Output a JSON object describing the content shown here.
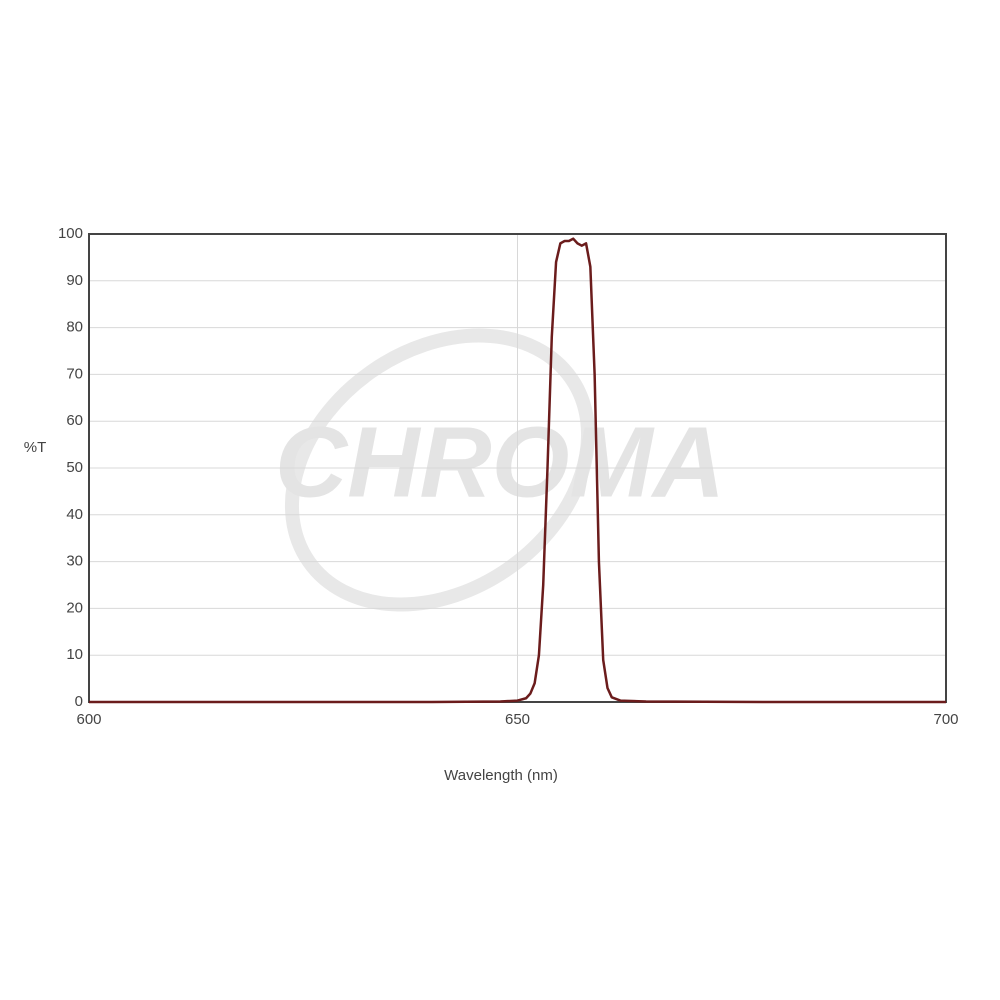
{
  "chart_data": {
    "type": "line",
    "watermark": "CHROMA",
    "xlabel": "Wavelength (nm)",
    "ylabel": "%T",
    "xlim": [
      600,
      700
    ],
    "ylim": [
      0,
      100
    ],
    "xticks": [
      600,
      650,
      700
    ],
    "yticks": [
      0,
      10,
      20,
      30,
      40,
      50,
      60,
      70,
      80,
      90,
      100
    ],
    "grid": true,
    "series": [
      {
        "color": "#6b1c1c",
        "x": [
          600,
          620,
          640,
          648,
          650,
          651,
          651.5,
          652,
          652.5,
          653,
          653.5,
          654,
          654.5,
          655,
          655.5,
          656,
          656.5,
          657,
          657.5,
          658,
          658.5,
          659,
          659.5,
          660,
          660.5,
          661,
          662,
          665,
          680,
          700
        ],
        "values": [
          0,
          0,
          0,
          0.1,
          0.3,
          0.8,
          1.8,
          4,
          10,
          25,
          50,
          78,
          94,
          98,
          98.5,
          98.5,
          99,
          98,
          97.5,
          98,
          93,
          70,
          30,
          9,
          3,
          1,
          0.3,
          0.1,
          0,
          0
        ]
      }
    ]
  }
}
